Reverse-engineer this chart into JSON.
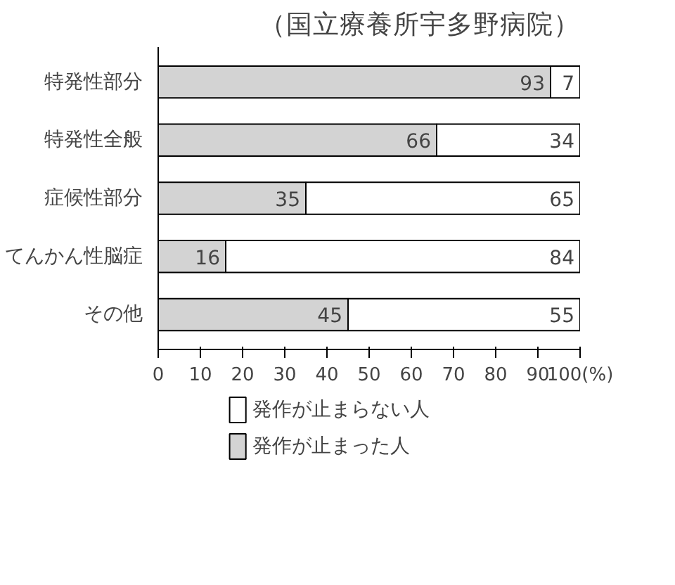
{
  "chart_data": {
    "type": "bar",
    "orientation": "horizontal",
    "stacked": true,
    "title": "（国立療養所宇多野病院）",
    "categories": [
      "特発性部分",
      "特発性全般",
      "症候性部分",
      "てんかん性脳症",
      "その他"
    ],
    "series": [
      {
        "name": "発作が止まった人",
        "color": "#d3d3d3",
        "values": [
          93,
          66,
          35,
          16,
          45
        ]
      },
      {
        "name": "発作が止まらない人",
        "color": "#ffffff",
        "values": [
          7,
          34,
          65,
          84,
          55
        ]
      }
    ],
    "xlim": [
      0,
      100
    ],
    "xticks": [
      0,
      10,
      20,
      30,
      40,
      50,
      60,
      70,
      80,
      90,
      {
        "value": 100,
        "label": "100(%)"
      }
    ],
    "data_labels": true,
    "grid": false,
    "legend": "bottom"
  }
}
